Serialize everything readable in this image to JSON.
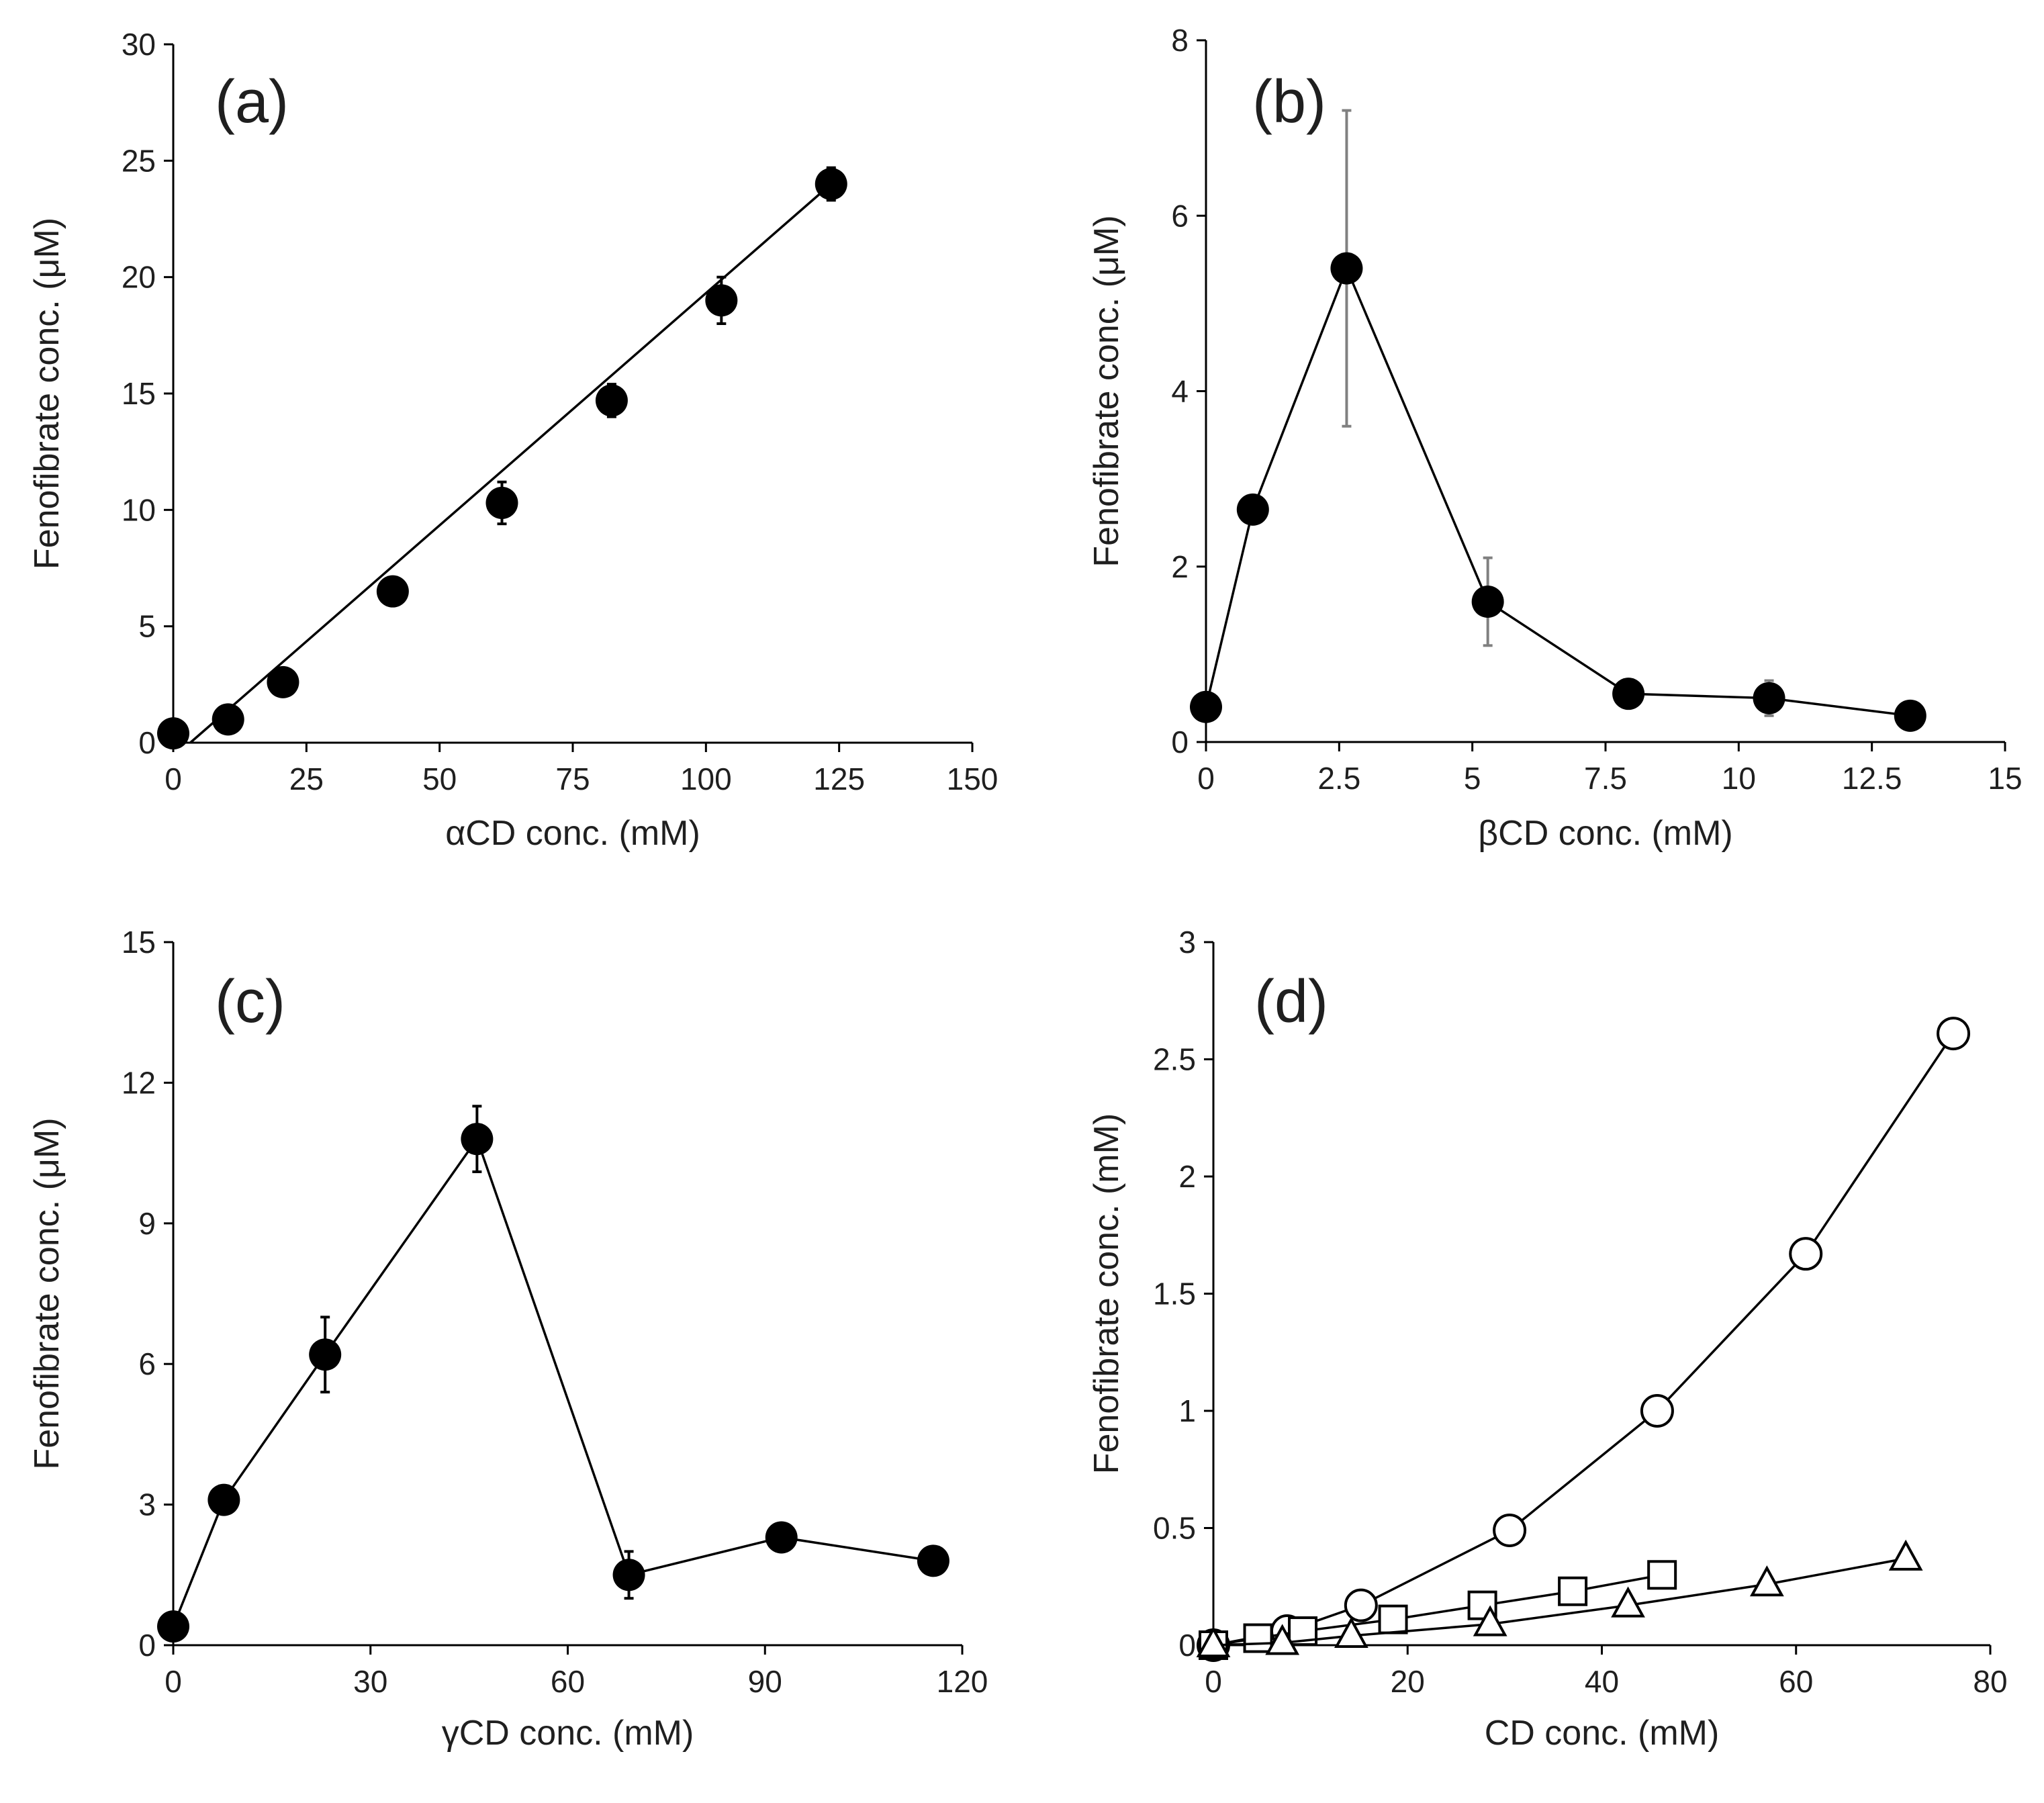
{
  "figure": {
    "colors": {
      "marker_filled": "#000000",
      "marker_open_fill": "#ffffff",
      "line": "#000000",
      "errbar_b": "#808080"
    }
  },
  "chart_data": [
    {
      "id": "a",
      "type": "scatter",
      "panel_label": "(a)",
      "xlabel": "αCD conc. (mM)",
      "ylabel": "Fenofibrate conc. (μM)",
      "xlim": [
        0,
        150
      ],
      "ylim": [
        0,
        30
      ],
      "xticks": [
        0,
        25,
        50,
        75,
        100,
        125,
        150
      ],
      "xtick_labels": [
        "0",
        "25",
        "50",
        "75",
        "100",
        "125",
        "150"
      ],
      "yticks": [
        0,
        5,
        10,
        15,
        20,
        25,
        30
      ],
      "ytick_labels": [
        "0",
        "5",
        "10",
        "15",
        "20",
        "25",
        "30"
      ],
      "series": [
        {
          "name": "αCD",
          "marker": "circle-filled",
          "connect": false,
          "x": [
            0,
            10.3,
            20.6,
            41.2,
            61.7,
            82.3,
            102.9,
            123.5
          ],
          "y": [
            0.4,
            1.0,
            2.6,
            6.5,
            10.3,
            14.7,
            19.0,
            24.0
          ],
          "err": [
            0.2,
            0.3,
            0.3,
            0.3,
            0.9,
            0.7,
            1.0,
            0.7
          ]
        }
      ],
      "fit_line": {
        "x": [
          3.2,
          123.5
        ],
        "y": [
          0,
          24.0
        ]
      }
    },
    {
      "id": "b",
      "type": "line",
      "panel_label": "(b)",
      "xlabel": "βCD conc. (mM)",
      "ylabel": "Fenofibrate conc. (μM)",
      "xlim": [
        0,
        15
      ],
      "ylim": [
        0,
        8
      ],
      "xticks": [
        0,
        2.5,
        5,
        7.5,
        10,
        12.5,
        15
      ],
      "xtick_labels": [
        "0",
        "2.5",
        "5",
        "7.5",
        "10",
        "12.5",
        "15"
      ],
      "yticks": [
        0,
        2,
        4,
        6,
        8
      ],
      "ytick_labels": [
        "0",
        "2",
        "4",
        "6",
        "8"
      ],
      "series": [
        {
          "name": "βCD",
          "marker": "circle-filled",
          "connect": true,
          "x": [
            0,
            0.88,
            2.64,
            5.29,
            7.93,
            10.57,
            13.22
          ],
          "y": [
            0.4,
            2.65,
            5.4,
            1.6,
            0.55,
            0.5,
            0.3
          ],
          "err": [
            0.1,
            0.1,
            1.8,
            0.5,
            0.1,
            0.2,
            0.1
          ]
        }
      ]
    },
    {
      "id": "c",
      "type": "line",
      "panel_label": "(c)",
      "xlabel": "γCD conc. (mM)",
      "ylabel": "Fenofibrate conc. (μM)",
      "xlim": [
        0,
        120
      ],
      "ylim": [
        0,
        15
      ],
      "xticks": [
        0,
        30,
        60,
        90,
        120
      ],
      "xtick_labels": [
        "0",
        "30",
        "60",
        "90",
        "120"
      ],
      "yticks": [
        0,
        3,
        6,
        9,
        12,
        15
      ],
      "ytick_labels": [
        "0",
        "3",
        "6",
        "9",
        "12",
        "15"
      ],
      "series": [
        {
          "name": "γCD",
          "marker": "circle-filled",
          "connect": true,
          "x": [
            0,
            7.7,
            23.1,
            46.2,
            69.3,
            92.5,
            115.6
          ],
          "y": [
            0.4,
            3.1,
            6.2,
            10.8,
            1.5,
            2.3,
            1.8
          ],
          "err": [
            0.1,
            0.2,
            0.8,
            0.7,
            0.5,
            0.2,
            0.2
          ]
        }
      ]
    },
    {
      "id": "d",
      "type": "line",
      "panel_label": "(d)",
      "xlabel": "CD conc. (mM)",
      "ylabel": "Fenofibrate conc. (mM)",
      "xlim": [
        0,
        80
      ],
      "ylim": [
        0,
        3
      ],
      "xticks": [
        0,
        20,
        40,
        60,
        80
      ],
      "xtick_labels": [
        "0",
        "20",
        "40",
        "60",
        "80"
      ],
      "yticks": [
        0,
        0.5,
        1,
        1.5,
        2,
        2.5,
        3
      ],
      "ytick_labels": [
        "0",
        "0.5",
        "1",
        "1.5",
        "2",
        "2.5",
        "3"
      ],
      "series": [
        {
          "name": "circle",
          "marker": "circle-open",
          "connect": true,
          "x": [
            0,
            7.6,
            15.2,
            30.5,
            45.7,
            61.0,
            76.2
          ],
          "y": [
            0.0,
            0.06,
            0.17,
            0.49,
            1.0,
            1.67,
            2.61
          ]
        },
        {
          "name": "square",
          "marker": "square-open",
          "connect": true,
          "x": [
            0,
            4.6,
            9.2,
            18.5,
            27.7,
            37.0,
            46.2
          ],
          "y": [
            0.0,
            0.03,
            0.06,
            0.11,
            0.17,
            0.23,
            0.3
          ]
        },
        {
          "name": "triangle",
          "marker": "triangle-open",
          "connect": true,
          "x": [
            0,
            7.1,
            14.2,
            28.5,
            42.7,
            57.0,
            71.3
          ],
          "y": [
            0.0,
            0.01,
            0.04,
            0.09,
            0.17,
            0.26,
            0.37
          ]
        }
      ]
    }
  ]
}
